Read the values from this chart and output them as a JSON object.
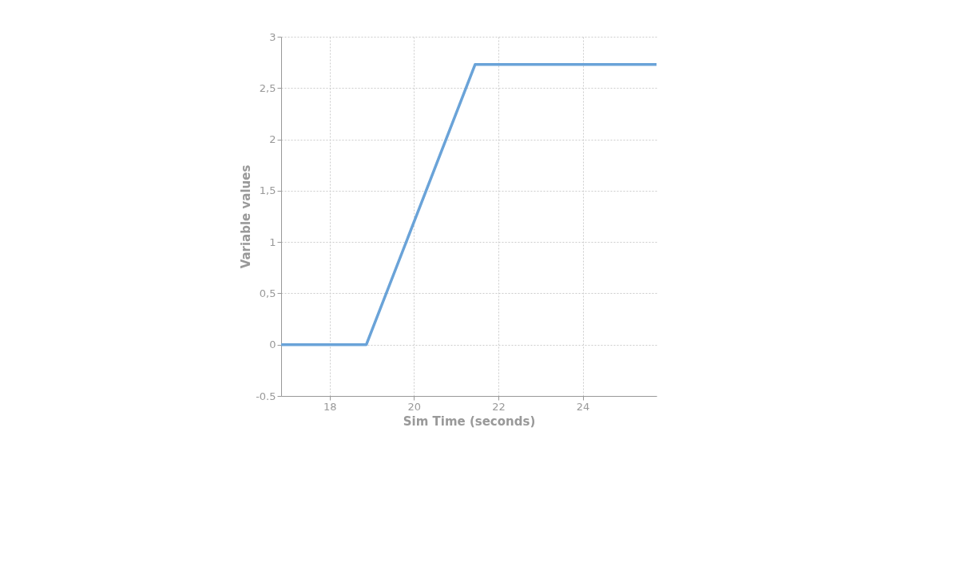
{
  "chart_data": {
    "type": "line",
    "xlabel": "Sim Time (seconds)",
    "ylabel": "Variable values",
    "x": [
      16.85,
      18.87,
      21.45,
      25.75
    ],
    "series": [
      {
        "color": "#6aa3d8",
        "values": [
          0,
          0,
          2.73,
          2.73
        ]
      }
    ],
    "xlim": [
      16.85,
      25.75
    ],
    "xticks": [
      18,
      20,
      22,
      24
    ],
    "ylim": [
      -0.5,
      3
    ],
    "yticks": [
      -0.5,
      0,
      {
        "value": 0.5,
        "label": "0,5"
      },
      1,
      {
        "value": 1.5,
        "label": "1,5"
      },
      2,
      {
        "value": 2.5,
        "label": "2,5"
      },
      3
    ],
    "grid": true,
    "marker": "none",
    "line_style": "solid"
  }
}
